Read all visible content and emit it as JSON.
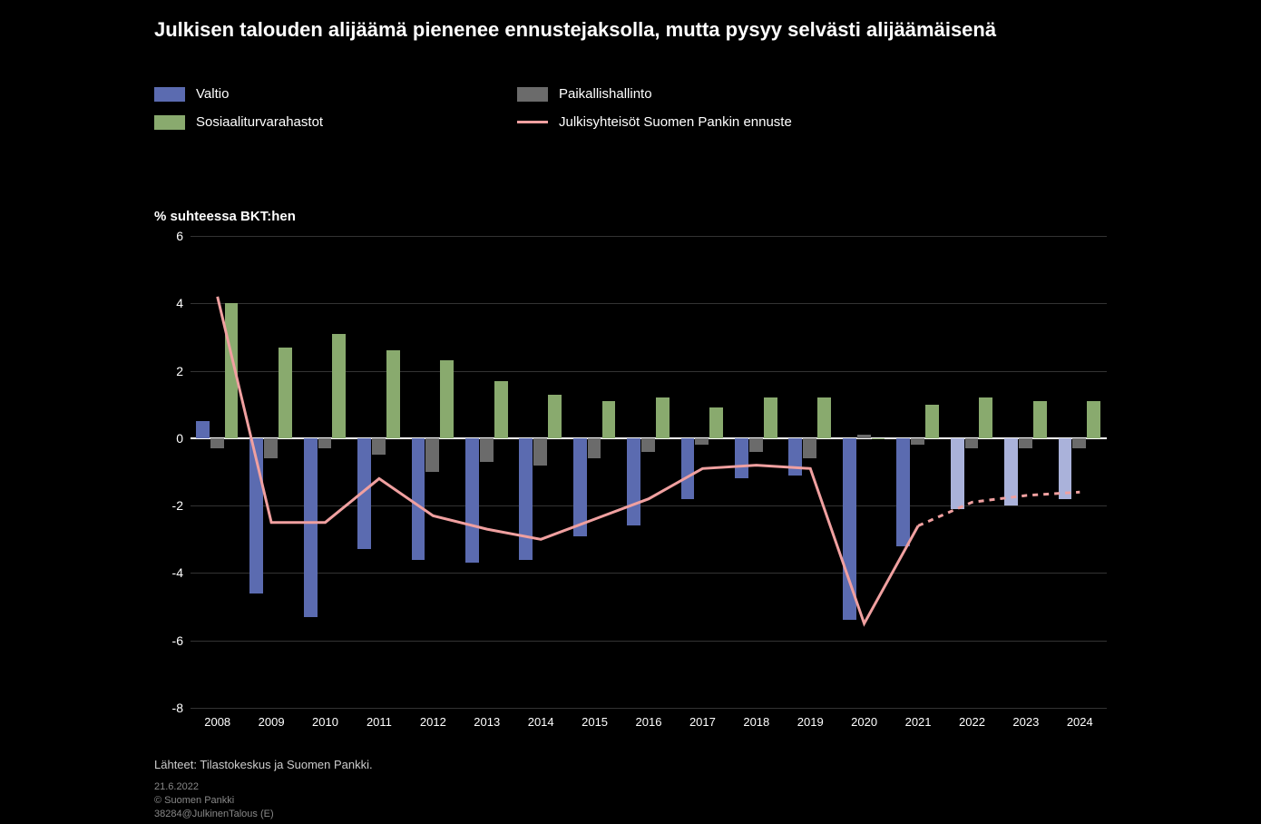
{
  "title": "Julkisen talouden alijäämä pienenee ennustejaksolla, mutta pysyy selvästi alijäämäisenä",
  "axis_title": "% suhteessa BKT:hen",
  "legend": {
    "s1": "Valtio",
    "s2": "Paikallishallinto",
    "s3": "Sosiaaliturvarahastot",
    "s4": "Julkisyhteisöt Suomen Pankin ennuste"
  },
  "colors": {
    "valtio": "#5b6bb0",
    "valtio_fore": "#aab2da",
    "paikallis": "#6b6b6b",
    "sotu": "#89aa6e",
    "line": "#f0a0a0",
    "grid": "#333333",
    "zero": "#ffffff",
    "text_muted": "#888888"
  },
  "chart": {
    "ylim_min": -8,
    "ylim_max": 6,
    "ytick_step": 2,
    "years": [
      2008,
      2009,
      2010,
      2011,
      2012,
      2013,
      2014,
      2015,
      2016,
      2017,
      2018,
      2019,
      2020,
      2021,
      2022,
      2023,
      2024
    ],
    "forecast_start_year": 2022,
    "valtio": [
      0.5,
      -4.6,
      -5.3,
      -3.3,
      -3.6,
      -3.7,
      -3.6,
      -2.9,
      -2.6,
      -1.8,
      -1.2,
      -1.1,
      -5.4,
      -3.2,
      -2.1,
      -2.0,
      -1.8
    ],
    "paikallis": [
      -0.3,
      -0.6,
      -0.3,
      -0.5,
      -1.0,
      -0.7,
      -0.8,
      -0.6,
      -0.4,
      -0.2,
      -0.4,
      -0.6,
      0.1,
      -0.2,
      -0.3,
      -0.3,
      -0.3
    ],
    "sotu": [
      4.0,
      2.7,
      3.1,
      2.6,
      2.3,
      1.7,
      1.3,
      1.1,
      1.2,
      0.9,
      1.2,
      1.2,
      0.0,
      1.0,
      1.2,
      1.1,
      1.1
    ],
    "total_line": [
      4.2,
      -2.5,
      -2.5,
      -1.2,
      -2.3,
      -2.7,
      -3.0,
      -2.4,
      -1.8,
      -0.9,
      -0.8,
      -0.9,
      -5.5,
      -2.6,
      -1.9,
      -1.7,
      -1.6
    ]
  },
  "source": "Lähteet: Tilastokeskus ja Suomen Pankki.",
  "footer": {
    "l1": "21.6.2022",
    "l2": "© Suomen Pankki",
    "l3": "38284@JulkinenTalous (E)"
  }
}
